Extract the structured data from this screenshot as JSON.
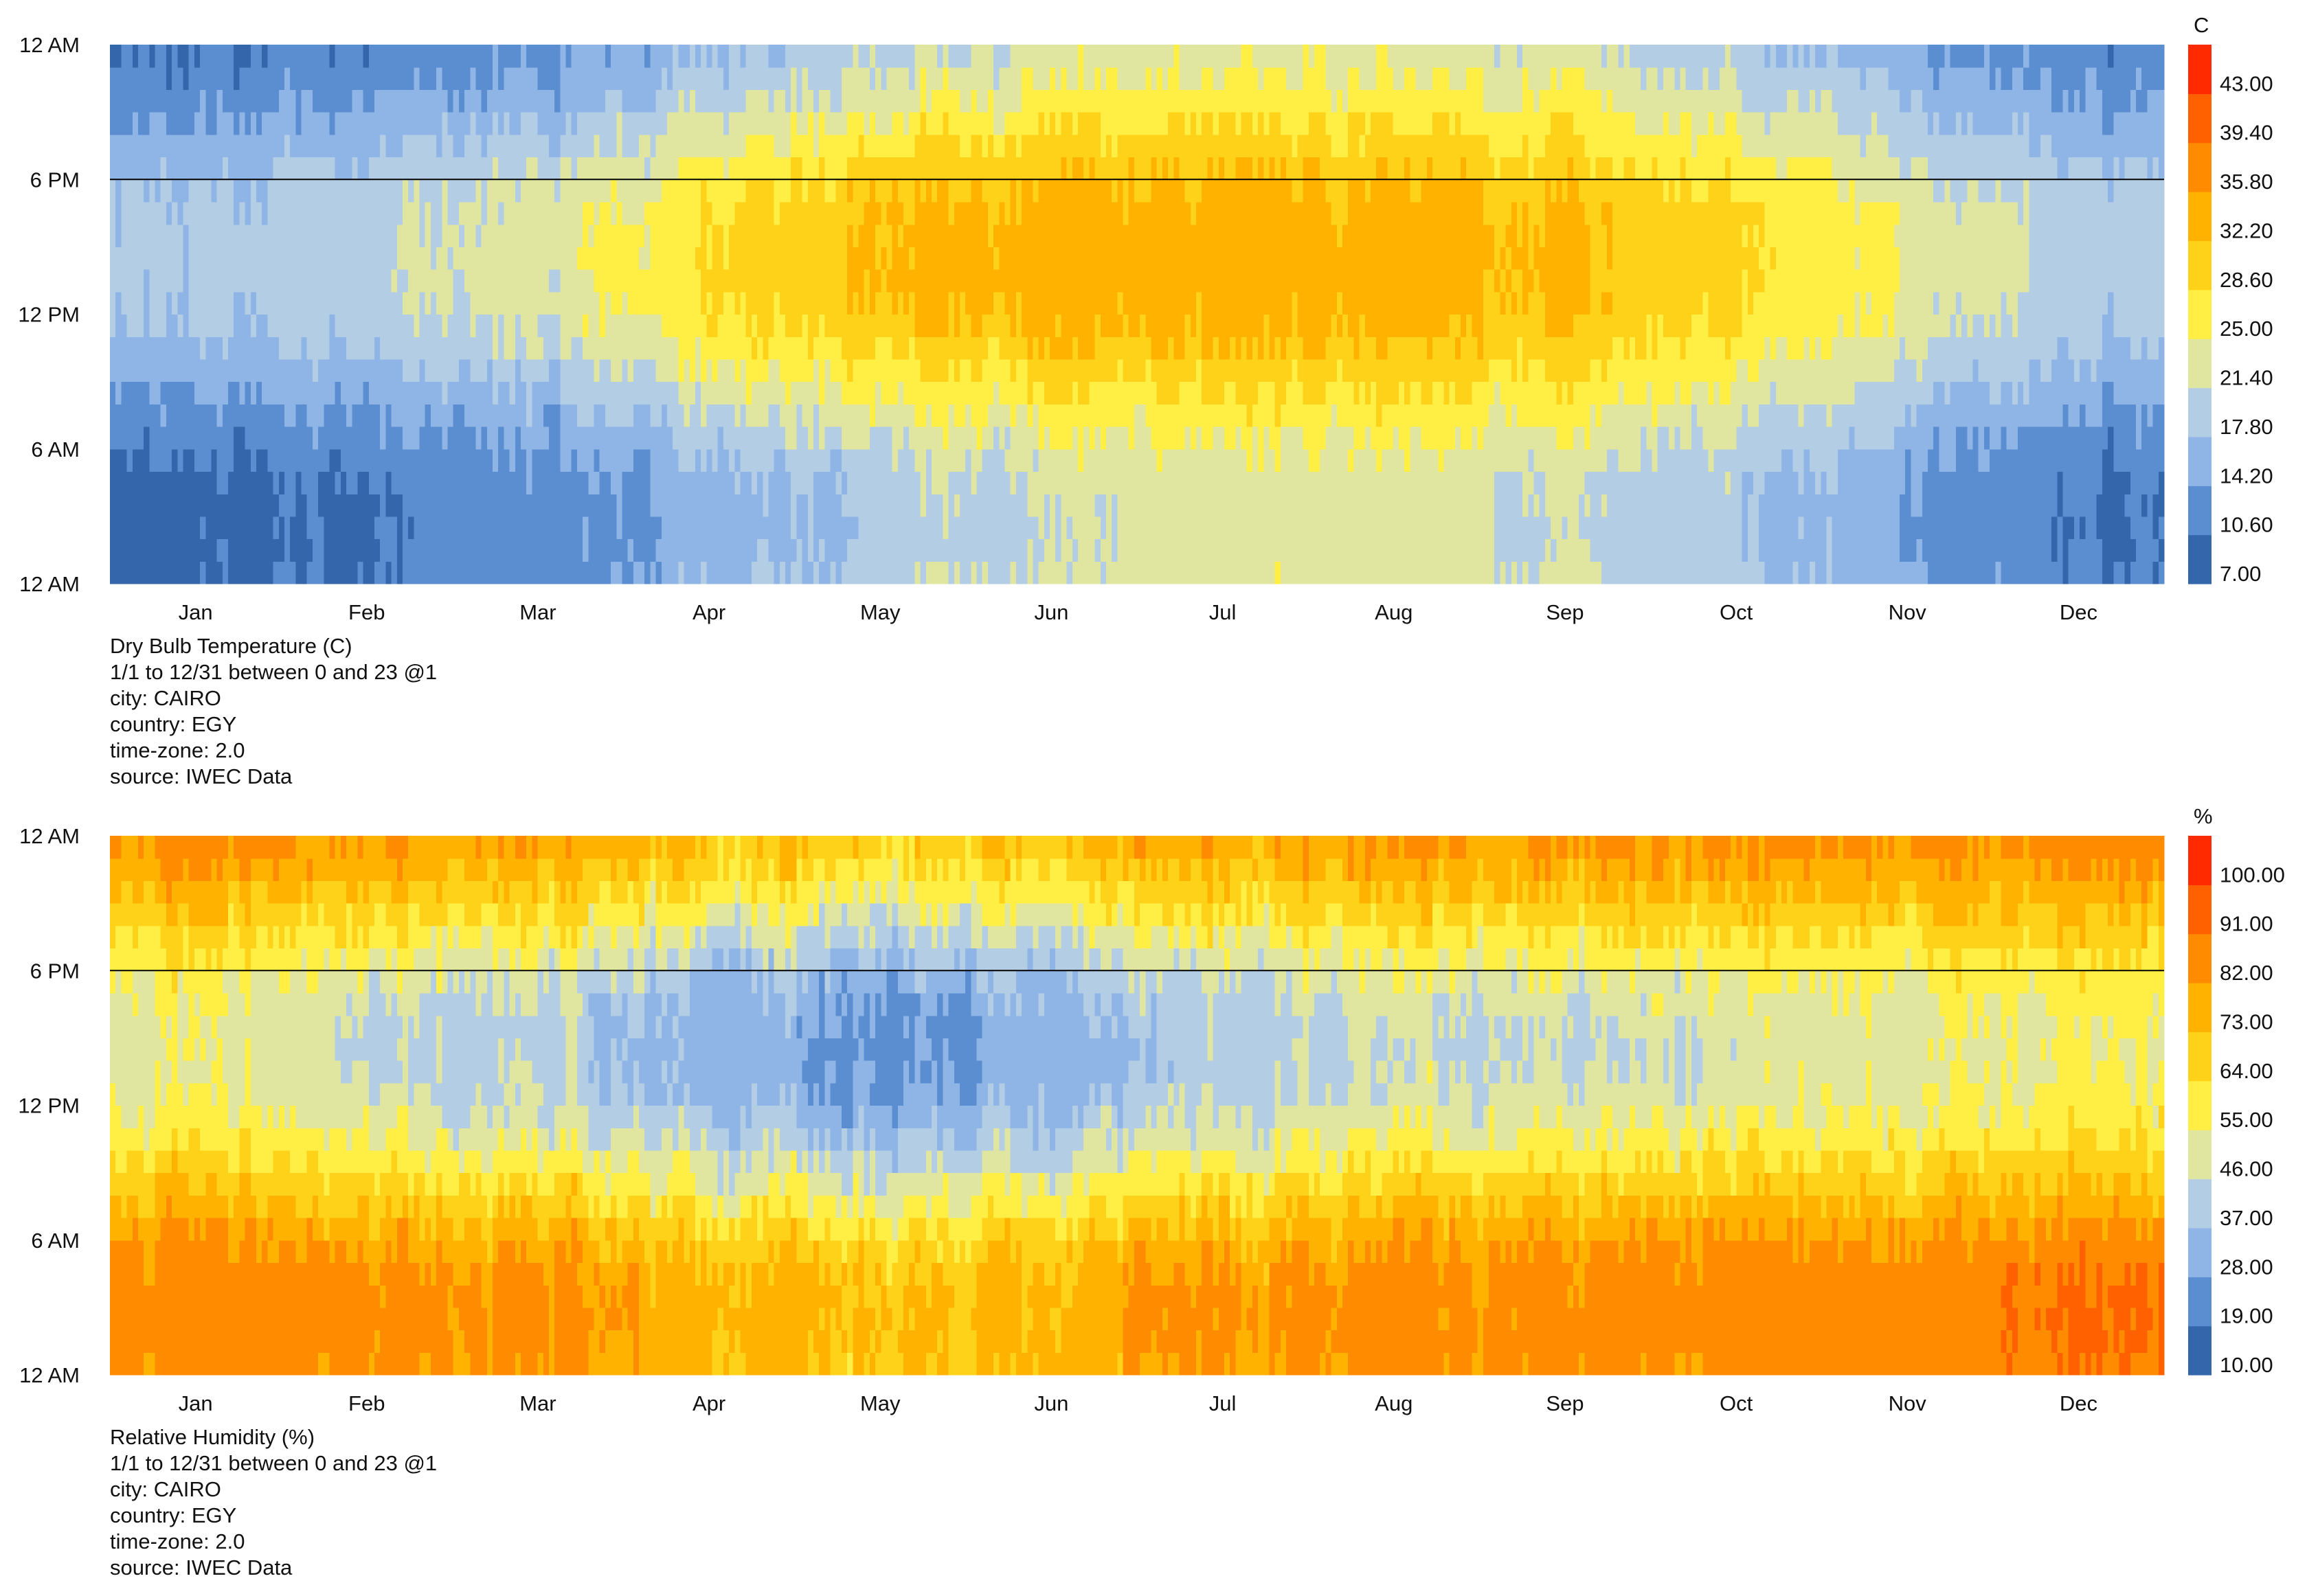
{
  "chart_data": [
    {
      "type": "heatmap",
      "title": "Dry Bulb Temperature (C)",
      "unit": "C",
      "x_tick_labels": [
        "Jan",
        "Feb",
        "Mar",
        "Apr",
        "May",
        "Jun",
        "Jul",
        "Aug",
        "Sep",
        "Oct",
        "Nov",
        "Dec"
      ],
      "y_tick_labels": [
        "12 AM",
        "6 PM",
        "12 PM",
        "6 AM",
        "12 AM"
      ],
      "x_range_days": [
        1,
        365
      ],
      "y_range_hours": [
        0,
        24
      ],
      "reference_line_hour": 18,
      "colorbar_ticks": [
        "7.00",
        "10.60",
        "14.20",
        "17.80",
        "21.40",
        "25.00",
        "28.60",
        "32.20",
        "35.80",
        "39.40",
        "43.00"
      ],
      "color_range": [
        7,
        46.6
      ],
      "palette": [
        "#3366aa",
        "#5b8ed0",
        "#8fb4e6",
        "#b3cde4",
        "#e0e6a0",
        "#ffee44",
        "#ffd21a",
        "#ffb300",
        "#ff8c00",
        "#ff6000",
        "#ff2a00"
      ],
      "monthly_min": [
        9,
        10,
        12,
        15,
        18,
        21,
        22,
        22,
        21,
        18,
        14,
        10
      ],
      "monthly_max": [
        19,
        21,
        24,
        29,
        33,
        35,
        35,
        35,
        33,
        30,
        25,
        20
      ],
      "notes": [
        "Dry Bulb Temperature (C)",
        "1/1 to 12/31 between 0 and 23 @1",
        "city: CAIRO",
        "country: EGY",
        "time-zone: 2.0",
        "source: IWEC Data"
      ]
    },
    {
      "type": "heatmap",
      "title": "Relative Humidity (%)",
      "unit": "%",
      "x_tick_labels": [
        "Jan",
        "Feb",
        "Mar",
        "Apr",
        "May",
        "Jun",
        "Jul",
        "Aug",
        "Sep",
        "Oct",
        "Nov",
        "Dec"
      ],
      "y_tick_labels": [
        "12 AM",
        "6 PM",
        "12 PM",
        "6 AM",
        "12 AM"
      ],
      "x_range_days": [
        1,
        365
      ],
      "y_range_hours": [
        0,
        24
      ],
      "reference_line_hour": 18,
      "colorbar_ticks": [
        "10.00",
        "19.00",
        "28.00",
        "37.00",
        "46.00",
        "55.00",
        "64.00",
        "73.00",
        "82.00",
        "91.00",
        "100.00"
      ],
      "color_range": [
        10,
        109
      ],
      "palette": [
        "#3366aa",
        "#5b8ed0",
        "#8fb4e6",
        "#b3cde4",
        "#e0e6a0",
        "#ffee44",
        "#ffd21a",
        "#ffb300",
        "#ff8c00",
        "#ff6000",
        "#ff2a00"
      ],
      "monthly_min": [
        50,
        45,
        40,
        30,
        25,
        30,
        40,
        45,
        45,
        45,
        50,
        55
      ],
      "monthly_max": [
        90,
        88,
        85,
        80,
        75,
        80,
        85,
        88,
        88,
        88,
        90,
        92
      ],
      "notes": [
        "Relative Humidity (%)",
        "1/1 to 12/31 between 0 and 23 @1",
        "city: CAIRO",
        "country: EGY",
        "time-zone: 2.0",
        "source: IWEC Data"
      ]
    }
  ]
}
